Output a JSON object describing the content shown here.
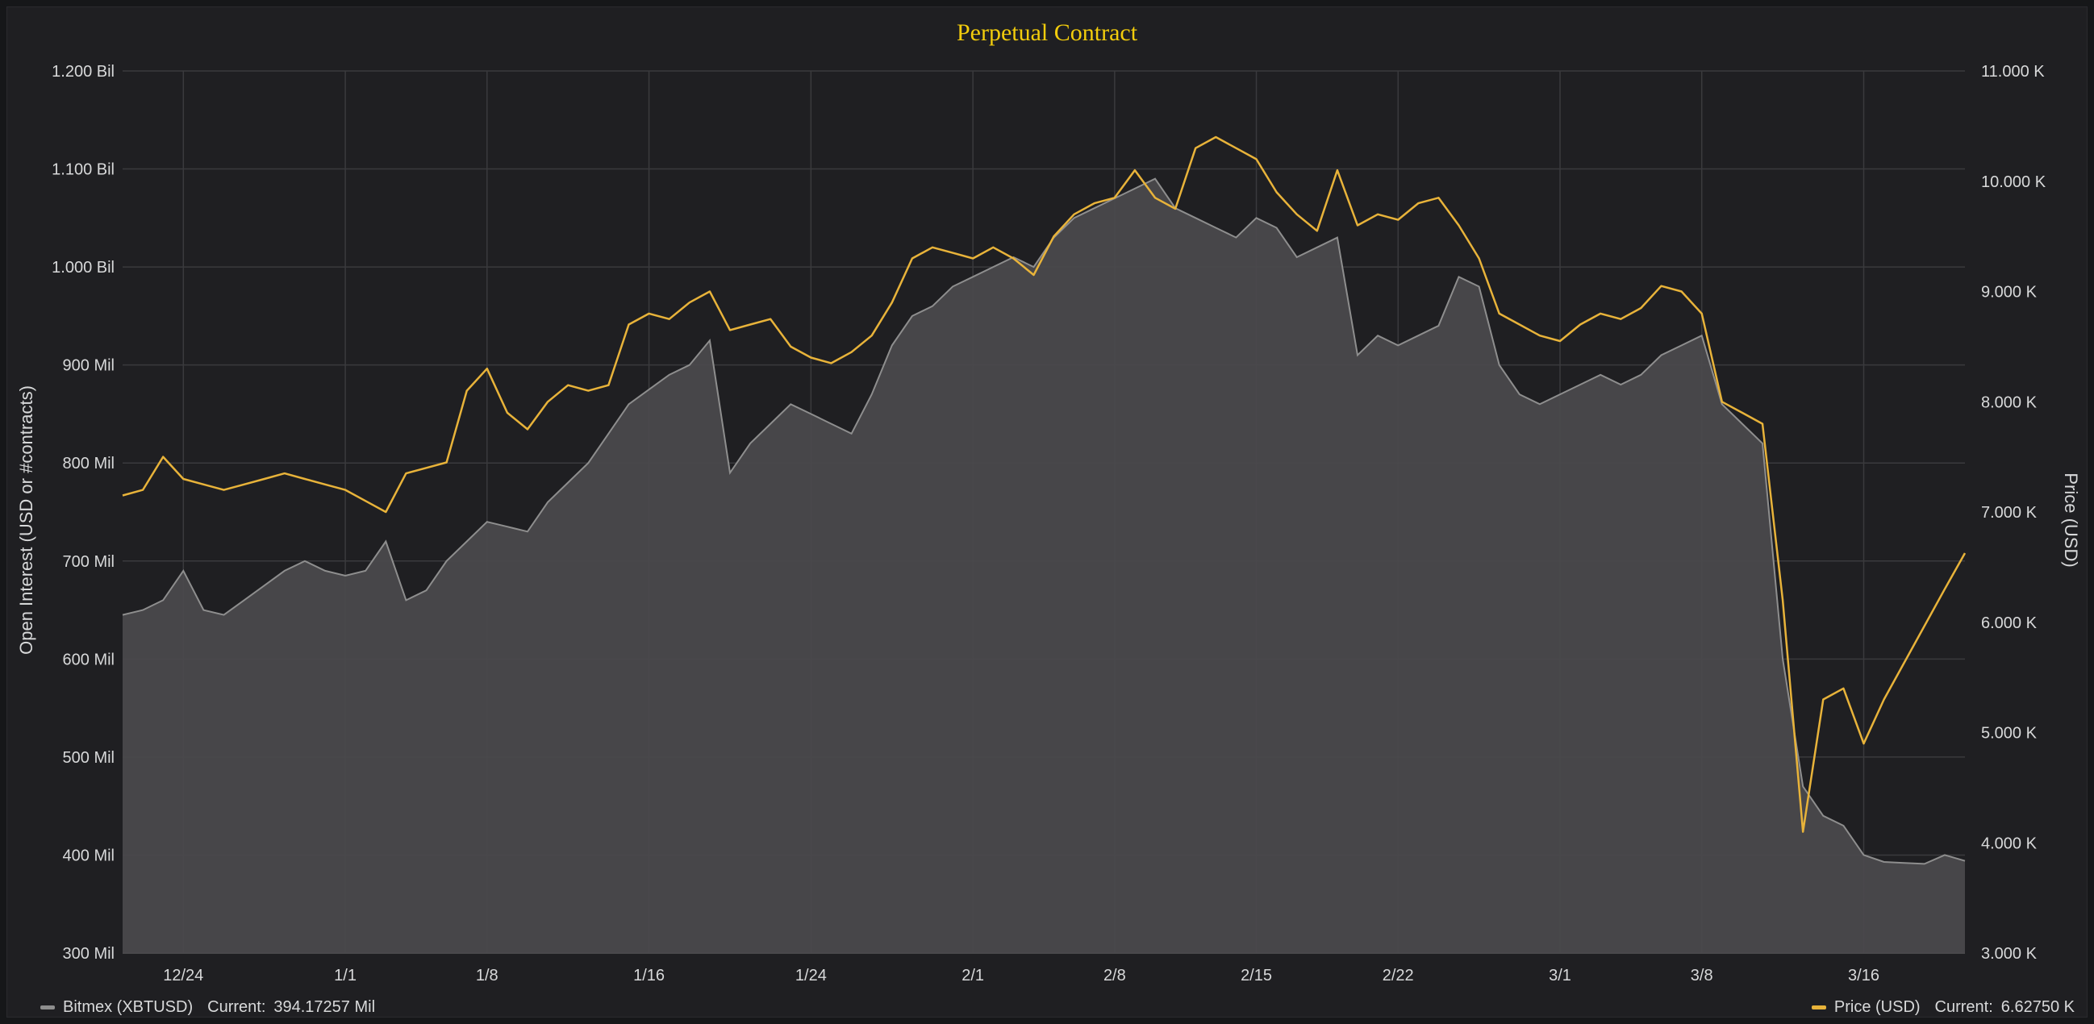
{
  "chart_data": {
    "type": "line",
    "title": "Perpetual Contract",
    "y_left_label": "Open Interest (USD or #contracts)",
    "y_right_label": "Price (USD)",
    "y_left_ticks": [
      "300 Mil",
      "400 Mil",
      "500 Mil",
      "600 Mil",
      "700 Mil",
      "800 Mil",
      "900 Mil",
      "1.000 Bil",
      "1.100 Bil",
      "1.200 Bil"
    ],
    "y_right_ticks": [
      "3.000 K",
      "4.000 K",
      "5.000 K",
      "6.000 K",
      "7.000 K",
      "8.000 K",
      "9.000 K",
      "10.000 K",
      "11.000 K"
    ],
    "y_left_range": [
      300,
      1200
    ],
    "y_right_range": [
      3000,
      11000
    ],
    "x_range": [
      "2019-12-21",
      "2020-03-21"
    ],
    "x_ticks": [
      {
        "label": "12/24",
        "date": "2019-12-24"
      },
      {
        "label": "1/1",
        "date": "2020-01-01"
      },
      {
        "label": "1/8",
        "date": "2020-01-08"
      },
      {
        "label": "1/16",
        "date": "2020-01-16"
      },
      {
        "label": "1/24",
        "date": "2020-01-24"
      },
      {
        "label": "2/1",
        "date": "2020-02-01"
      },
      {
        "label": "2/8",
        "date": "2020-02-08"
      },
      {
        "label": "2/15",
        "date": "2020-02-15"
      },
      {
        "label": "2/22",
        "date": "2020-02-22"
      },
      {
        "label": "3/1",
        "date": "2020-03-01"
      },
      {
        "label": "3/8",
        "date": "2020-03-08"
      },
      {
        "label": "3/16",
        "date": "2020-03-16"
      }
    ],
    "grid": true,
    "series": [
      {
        "name": "Bitmex (XBTUSD)",
        "axis": "left",
        "unit": "Mil",
        "color": "#8e8e8e",
        "fill": "#4a494c",
        "current": "394.17257 Mil",
        "points": [
          [
            "2019-12-21",
            645
          ],
          [
            "2019-12-22",
            650
          ],
          [
            "2019-12-23",
            660
          ],
          [
            "2019-12-24",
            690
          ],
          [
            "2019-12-25",
            650
          ],
          [
            "2019-12-26",
            645
          ],
          [
            "2019-12-27",
            660
          ],
          [
            "2019-12-28",
            675
          ],
          [
            "2019-12-29",
            690
          ],
          [
            "2019-12-30",
            700
          ],
          [
            "2019-12-31",
            690
          ],
          [
            "2020-01-01",
            685
          ],
          [
            "2020-01-02",
            690
          ],
          [
            "2020-01-03",
            720
          ],
          [
            "2020-01-04",
            660
          ],
          [
            "2020-01-05",
            670
          ],
          [
            "2020-01-06",
            700
          ],
          [
            "2020-01-07",
            720
          ],
          [
            "2020-01-08",
            740
          ],
          [
            "2020-01-09",
            735
          ],
          [
            "2020-01-10",
            730
          ],
          [
            "2020-01-11",
            760
          ],
          [
            "2020-01-12",
            780
          ],
          [
            "2020-01-13",
            800
          ],
          [
            "2020-01-14",
            830
          ],
          [
            "2020-01-15",
            860
          ],
          [
            "2020-01-16",
            875
          ],
          [
            "2020-01-17",
            890
          ],
          [
            "2020-01-18",
            900
          ],
          [
            "2020-01-19",
            925
          ],
          [
            "2020-01-20",
            790
          ],
          [
            "2020-01-21",
            820
          ],
          [
            "2020-01-22",
            840
          ],
          [
            "2020-01-23",
            860
          ],
          [
            "2020-01-24",
            850
          ],
          [
            "2020-01-25",
            840
          ],
          [
            "2020-01-26",
            830
          ],
          [
            "2020-01-27",
            870
          ],
          [
            "2020-01-28",
            920
          ],
          [
            "2020-01-29",
            950
          ],
          [
            "2020-01-30",
            960
          ],
          [
            "2020-01-31",
            980
          ],
          [
            "2020-02-01",
            990
          ],
          [
            "2020-02-02",
            1000
          ],
          [
            "2020-02-03",
            1010
          ],
          [
            "2020-02-04",
            1000
          ],
          [
            "2020-02-05",
            1030
          ],
          [
            "2020-02-06",
            1050
          ],
          [
            "2020-02-07",
            1060
          ],
          [
            "2020-02-08",
            1070
          ],
          [
            "2020-02-09",
            1080
          ],
          [
            "2020-02-10",
            1090
          ],
          [
            "2020-02-11",
            1060
          ],
          [
            "2020-02-12",
            1050
          ],
          [
            "2020-02-13",
            1040
          ],
          [
            "2020-02-14",
            1030
          ],
          [
            "2020-02-15",
            1050
          ],
          [
            "2020-02-16",
            1040
          ],
          [
            "2020-02-17",
            1010
          ],
          [
            "2020-02-18",
            1020
          ],
          [
            "2020-02-19",
            1030
          ],
          [
            "2020-02-20",
            910
          ],
          [
            "2020-02-21",
            930
          ],
          [
            "2020-02-22",
            920
          ],
          [
            "2020-02-23",
            930
          ],
          [
            "2020-02-24",
            940
          ],
          [
            "2020-02-25",
            990
          ],
          [
            "2020-02-26",
            980
          ],
          [
            "2020-02-27",
            900
          ],
          [
            "2020-02-28",
            870
          ],
          [
            "2020-02-29",
            860
          ],
          [
            "2020-03-01",
            870
          ],
          [
            "2020-03-02",
            880
          ],
          [
            "2020-03-03",
            890
          ],
          [
            "2020-03-04",
            880
          ],
          [
            "2020-03-05",
            890
          ],
          [
            "2020-03-06",
            910
          ],
          [
            "2020-03-07",
            920
          ],
          [
            "2020-03-08",
            930
          ],
          [
            "2020-03-09",
            860
          ],
          [
            "2020-03-10",
            840
          ],
          [
            "2020-03-11",
            820
          ],
          [
            "2020-03-12",
            600
          ],
          [
            "2020-03-13",
            470
          ],
          [
            "2020-03-14",
            440
          ],
          [
            "2020-03-15",
            430
          ],
          [
            "2020-03-16",
            400
          ],
          [
            "2020-03-17",
            393
          ],
          [
            "2020-03-18",
            392
          ],
          [
            "2020-03-19",
            391
          ],
          [
            "2020-03-20",
            400
          ],
          [
            "2020-03-21",
            394
          ]
        ]
      },
      {
        "name": "Price (USD)",
        "axis": "right",
        "unit": "K",
        "color": "#e8b33a",
        "current": "6.62750 K",
        "points": [
          [
            "2019-12-21",
            7150
          ],
          [
            "2019-12-22",
            7200
          ],
          [
            "2019-12-23",
            7500
          ],
          [
            "2019-12-24",
            7300
          ],
          [
            "2019-12-25",
            7250
          ],
          [
            "2019-12-26",
            7200
          ],
          [
            "2019-12-27",
            7250
          ],
          [
            "2019-12-28",
            7300
          ],
          [
            "2019-12-29",
            7350
          ],
          [
            "2019-12-30",
            7300
          ],
          [
            "2019-12-31",
            7250
          ],
          [
            "2020-01-01",
            7200
          ],
          [
            "2020-01-02",
            7100
          ],
          [
            "2020-01-03",
            7000
          ],
          [
            "2020-01-04",
            7350
          ],
          [
            "2020-01-05",
            7400
          ],
          [
            "2020-01-06",
            7450
          ],
          [
            "2020-01-07",
            8100
          ],
          [
            "2020-01-08",
            8300
          ],
          [
            "2020-01-09",
            7900
          ],
          [
            "2020-01-10",
            7750
          ],
          [
            "2020-01-11",
            8000
          ],
          [
            "2020-01-12",
            8150
          ],
          [
            "2020-01-13",
            8100
          ],
          [
            "2020-01-14",
            8150
          ],
          [
            "2020-01-15",
            8700
          ],
          [
            "2020-01-16",
            8800
          ],
          [
            "2020-01-17",
            8750
          ],
          [
            "2020-01-18",
            8900
          ],
          [
            "2020-01-19",
            9000
          ],
          [
            "2020-01-20",
            8650
          ],
          [
            "2020-01-21",
            8700
          ],
          [
            "2020-01-22",
            8750
          ],
          [
            "2020-01-23",
            8500
          ],
          [
            "2020-01-24",
            8400
          ],
          [
            "2020-01-25",
            8350
          ],
          [
            "2020-01-26",
            8450
          ],
          [
            "2020-01-27",
            8600
          ],
          [
            "2020-01-28",
            8900
          ],
          [
            "2020-01-29",
            9300
          ],
          [
            "2020-01-30",
            9400
          ],
          [
            "2020-01-31",
            9350
          ],
          [
            "2020-02-01",
            9300
          ],
          [
            "2020-02-02",
            9400
          ],
          [
            "2020-02-03",
            9300
          ],
          [
            "2020-02-04",
            9150
          ],
          [
            "2020-02-05",
            9500
          ],
          [
            "2020-02-06",
            9700
          ],
          [
            "2020-02-07",
            9800
          ],
          [
            "2020-02-08",
            9850
          ],
          [
            "2020-02-09",
            10100
          ],
          [
            "2020-02-10",
            9850
          ],
          [
            "2020-02-11",
            9750
          ],
          [
            "2020-02-12",
            10300
          ],
          [
            "2020-02-13",
            10400
          ],
          [
            "2020-02-14",
            10300
          ],
          [
            "2020-02-15",
            10200
          ],
          [
            "2020-02-16",
            9900
          ],
          [
            "2020-02-17",
            9700
          ],
          [
            "2020-02-18",
            9550
          ],
          [
            "2020-02-19",
            10100
          ],
          [
            "2020-02-20",
            9600
          ],
          [
            "2020-02-21",
            9700
          ],
          [
            "2020-02-22",
            9650
          ],
          [
            "2020-02-23",
            9800
          ],
          [
            "2020-02-24",
            9850
          ],
          [
            "2020-02-25",
            9600
          ],
          [
            "2020-02-26",
            9300
          ],
          [
            "2020-02-27",
            8800
          ],
          [
            "2020-02-28",
            8700
          ],
          [
            "2020-02-29",
            8600
          ],
          [
            "2020-03-01",
            8550
          ],
          [
            "2020-03-02",
            8700
          ],
          [
            "2020-03-03",
            8800
          ],
          [
            "2020-03-04",
            8750
          ],
          [
            "2020-03-05",
            8850
          ],
          [
            "2020-03-06",
            9050
          ],
          [
            "2020-03-07",
            9000
          ],
          [
            "2020-03-08",
            8800
          ],
          [
            "2020-03-09",
            8000
          ],
          [
            "2020-03-10",
            7900
          ],
          [
            "2020-03-11",
            7800
          ],
          [
            "2020-03-12",
            6200
          ],
          [
            "2020-03-13",
            4100
          ],
          [
            "2020-03-14",
            5300
          ],
          [
            "2020-03-15",
            5400
          ],
          [
            "2020-03-16",
            4900
          ],
          [
            "2020-03-17",
            5300
          ],
          [
            "2020-03-20",
            6300
          ],
          [
            "2020-03-21",
            6627
          ]
        ]
      }
    ]
  }
}
